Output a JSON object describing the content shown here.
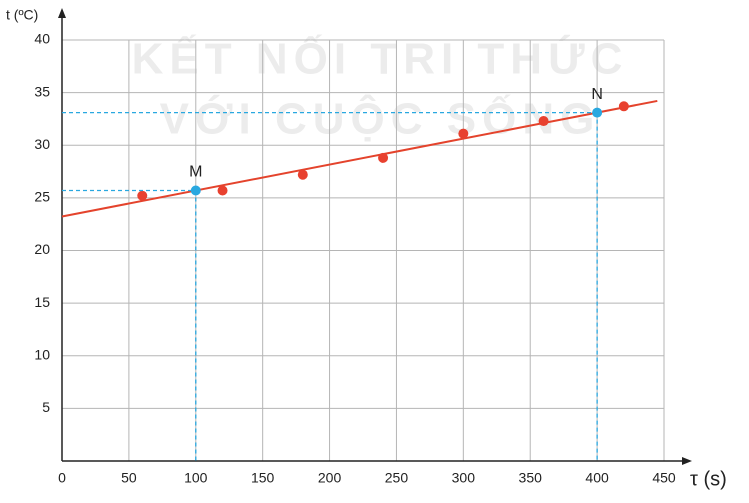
{
  "chart_data": {
    "type": "scatter",
    "y_label": "t (ºC)",
    "x_label": "τ (s)",
    "watermark": [
      "KẾT NỐI TRI THỨC",
      "VỚI CUỘC SỐNG"
    ],
    "xlim": [
      0,
      450
    ],
    "ylim": [
      0,
      40
    ],
    "xticks": [
      0,
      50,
      100,
      150,
      200,
      250,
      300,
      350,
      400,
      450
    ],
    "yticks": [
      5,
      10,
      15,
      20,
      25,
      30,
      35,
      40
    ],
    "grid": true,
    "points": {
      "color": "#e8412f",
      "x": [
        60,
        120,
        180,
        240,
        300,
        360,
        420
      ],
      "y": [
        25.2,
        25.7,
        27.2,
        28.8,
        31.1,
        32.3,
        33.7
      ]
    },
    "fit_line": {
      "color": "#e4432c",
      "x": [
        0,
        445
      ],
      "y": [
        23.23,
        34.21
      ]
    },
    "marked_points": [
      {
        "label": "M",
        "x": 100,
        "y": 25.7,
        "color": "#29a8e0"
      },
      {
        "label": "N",
        "x": 400,
        "y": 33.1,
        "color": "#29a8e0"
      }
    ]
  }
}
